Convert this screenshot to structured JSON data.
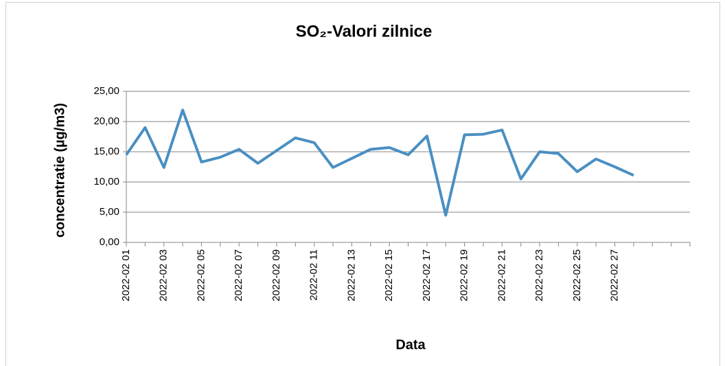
{
  "chart_data": {
    "type": "line",
    "title": "SO₂-Valori zilnice",
    "y_label": "concentratie (µg/m3)",
    "x_label": "Data",
    "categories": [
      "2022-02 01",
      null,
      "2022-02 03",
      null,
      "2022-02 05",
      null,
      "2022-02 07",
      null,
      "2022-02 09",
      null,
      "2022-02 11",
      null,
      "2022-02 13",
      null,
      "2022-02 15",
      null,
      "2022-02 17",
      null,
      "2022-02 19",
      null,
      "2022-02 21",
      null,
      "2022-02 23",
      null,
      "2022-02 25",
      null,
      "2022-02 27",
      null,
      null,
      null,
      null
    ],
    "series": [
      {
        "name": "SO2",
        "color": "#4a8fc2",
        "values": [
          14.5,
          19.0,
          12.4,
          21.9,
          13.3,
          14.1,
          15.4,
          13.1,
          15.2,
          17.3,
          16.5,
          12.4,
          13.9,
          15.4,
          15.7,
          14.5,
          17.6,
          4.5,
          17.8,
          17.9,
          18.6,
          10.5,
          15.0,
          14.7,
          11.7,
          13.8,
          12.5,
          11.1,
          null,
          null,
          null
        ]
      }
    ],
    "ylim": [
      0,
      25
    ],
    "yticks": [
      {
        "value": 0,
        "label": "0,00"
      },
      {
        "value": 5,
        "label": "5,00"
      },
      {
        "value": 10,
        "label": "10,00"
      },
      {
        "value": 15,
        "label": "15,00"
      },
      {
        "value": 20,
        "label": "20,00"
      },
      {
        "value": 25,
        "label": "25,00"
      }
    ],
    "grid": true
  }
}
